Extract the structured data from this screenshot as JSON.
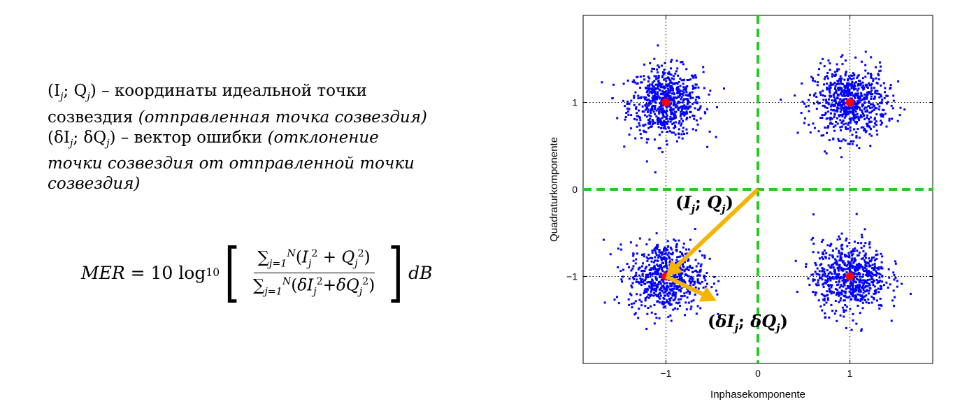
{
  "text": {
    "line1_pre": "(I",
    "line1_sub_j": "j",
    "line1_mid": "; Q",
    "line1_sub_j2": "j",
    "line1_post": ") – координаты идеальной точки",
    "line2_plain": "созвездия ",
    "line2_italic": "(отправленная точка созвездия)",
    "line3_pre": "(δI",
    "line3_sub_j": "j",
    "line3_mid": "; δQ",
    "line3_sub_j2": "j",
    "line3_plain": ") – вектор ошибки ",
    "line3_italic": "(отклонение",
    "line4_italic": "точки созвездия от отправленной точки",
    "line5_italic": "созвездия)"
  },
  "formula": {
    "lhs": "MER = 10 log",
    "lhs_sub": "10",
    "numerator": "∑ j=1 N (I j 2 + Q j 2)",
    "denominator": "∑ j=1 N (δI j 2 + δQ j 2)",
    "unit": "dB"
  },
  "colors": {
    "points": "#0000ff",
    "ideal": "#ff0000",
    "axes_dashed": "#22cc22",
    "arrows": "#f5b400"
  },
  "chart_data": {
    "type": "scatter",
    "xlabel": "Inphasekomponente",
    "ylabel": "Quadraturkomponente",
    "xlim": [
      -1.9,
      1.9
    ],
    "ylim": [
      -2.0,
      2.0
    ],
    "xticks": [
      -1,
      0,
      1
    ],
    "xtick_labels": [
      "−1",
      "0",
      "1"
    ],
    "yticks": [
      -1,
      0,
      1
    ],
    "ytick_labels": [
      "−1",
      "0",
      "1"
    ],
    "grid": true,
    "constellation_ideal_points": [
      {
        "x": -1,
        "y": 1
      },
      {
        "x": 1,
        "y": 1
      },
      {
        "x": -1,
        "y": -1
      },
      {
        "x": 1,
        "y": -1
      }
    ],
    "cluster_spread_std": 0.2,
    "samples_per_cluster": 700,
    "ideal_vector": {
      "label": "(I_j; Q_j)",
      "from": [
        0,
        0
      ],
      "to": [
        -1,
        -1
      ]
    },
    "error_vector": {
      "label": "(δI_j; δQ_j)",
      "from": [
        -1,
        -1
      ],
      "to": [
        -0.45,
        -1.28
      ]
    }
  }
}
